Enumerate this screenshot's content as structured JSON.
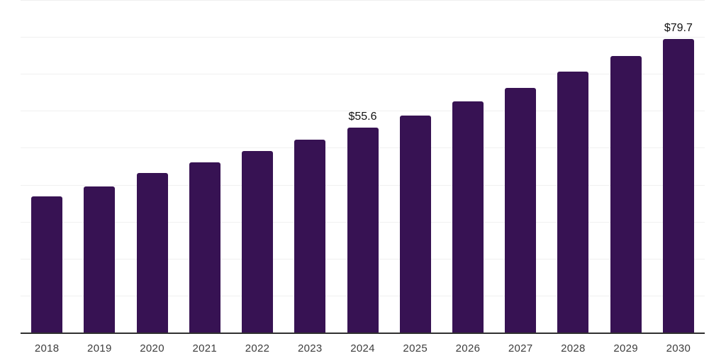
{
  "chart_data": {
    "type": "bar",
    "title": "",
    "xlabel": "",
    "ylabel": "",
    "categories": [
      "2018",
      "2019",
      "2020",
      "2021",
      "2022",
      "2023",
      "2024",
      "2025",
      "2026",
      "2027",
      "2028",
      "2029",
      "2030"
    ],
    "values": [
      37.0,
      39.7,
      43.4,
      46.2,
      49.4,
      52.4,
      55.6,
      59.0,
      62.7,
      66.4,
      70.8,
      75.0,
      79.7
    ],
    "data_labels": [
      {
        "category": "2024",
        "text": "$55.6"
      },
      {
        "category": "2030",
        "text": "$79.7"
      }
    ],
    "ylim": [
      0,
      90
    ],
    "gridline_step": 10,
    "grid": true,
    "legend_position": "none",
    "bar_color": "#371253",
    "gridline_color": "#f0f0f0",
    "axis_line_color": "#303030",
    "x_tick_color": "#3d3d3d",
    "data_label_color": "#111111",
    "background_color": "#ffffff"
  }
}
